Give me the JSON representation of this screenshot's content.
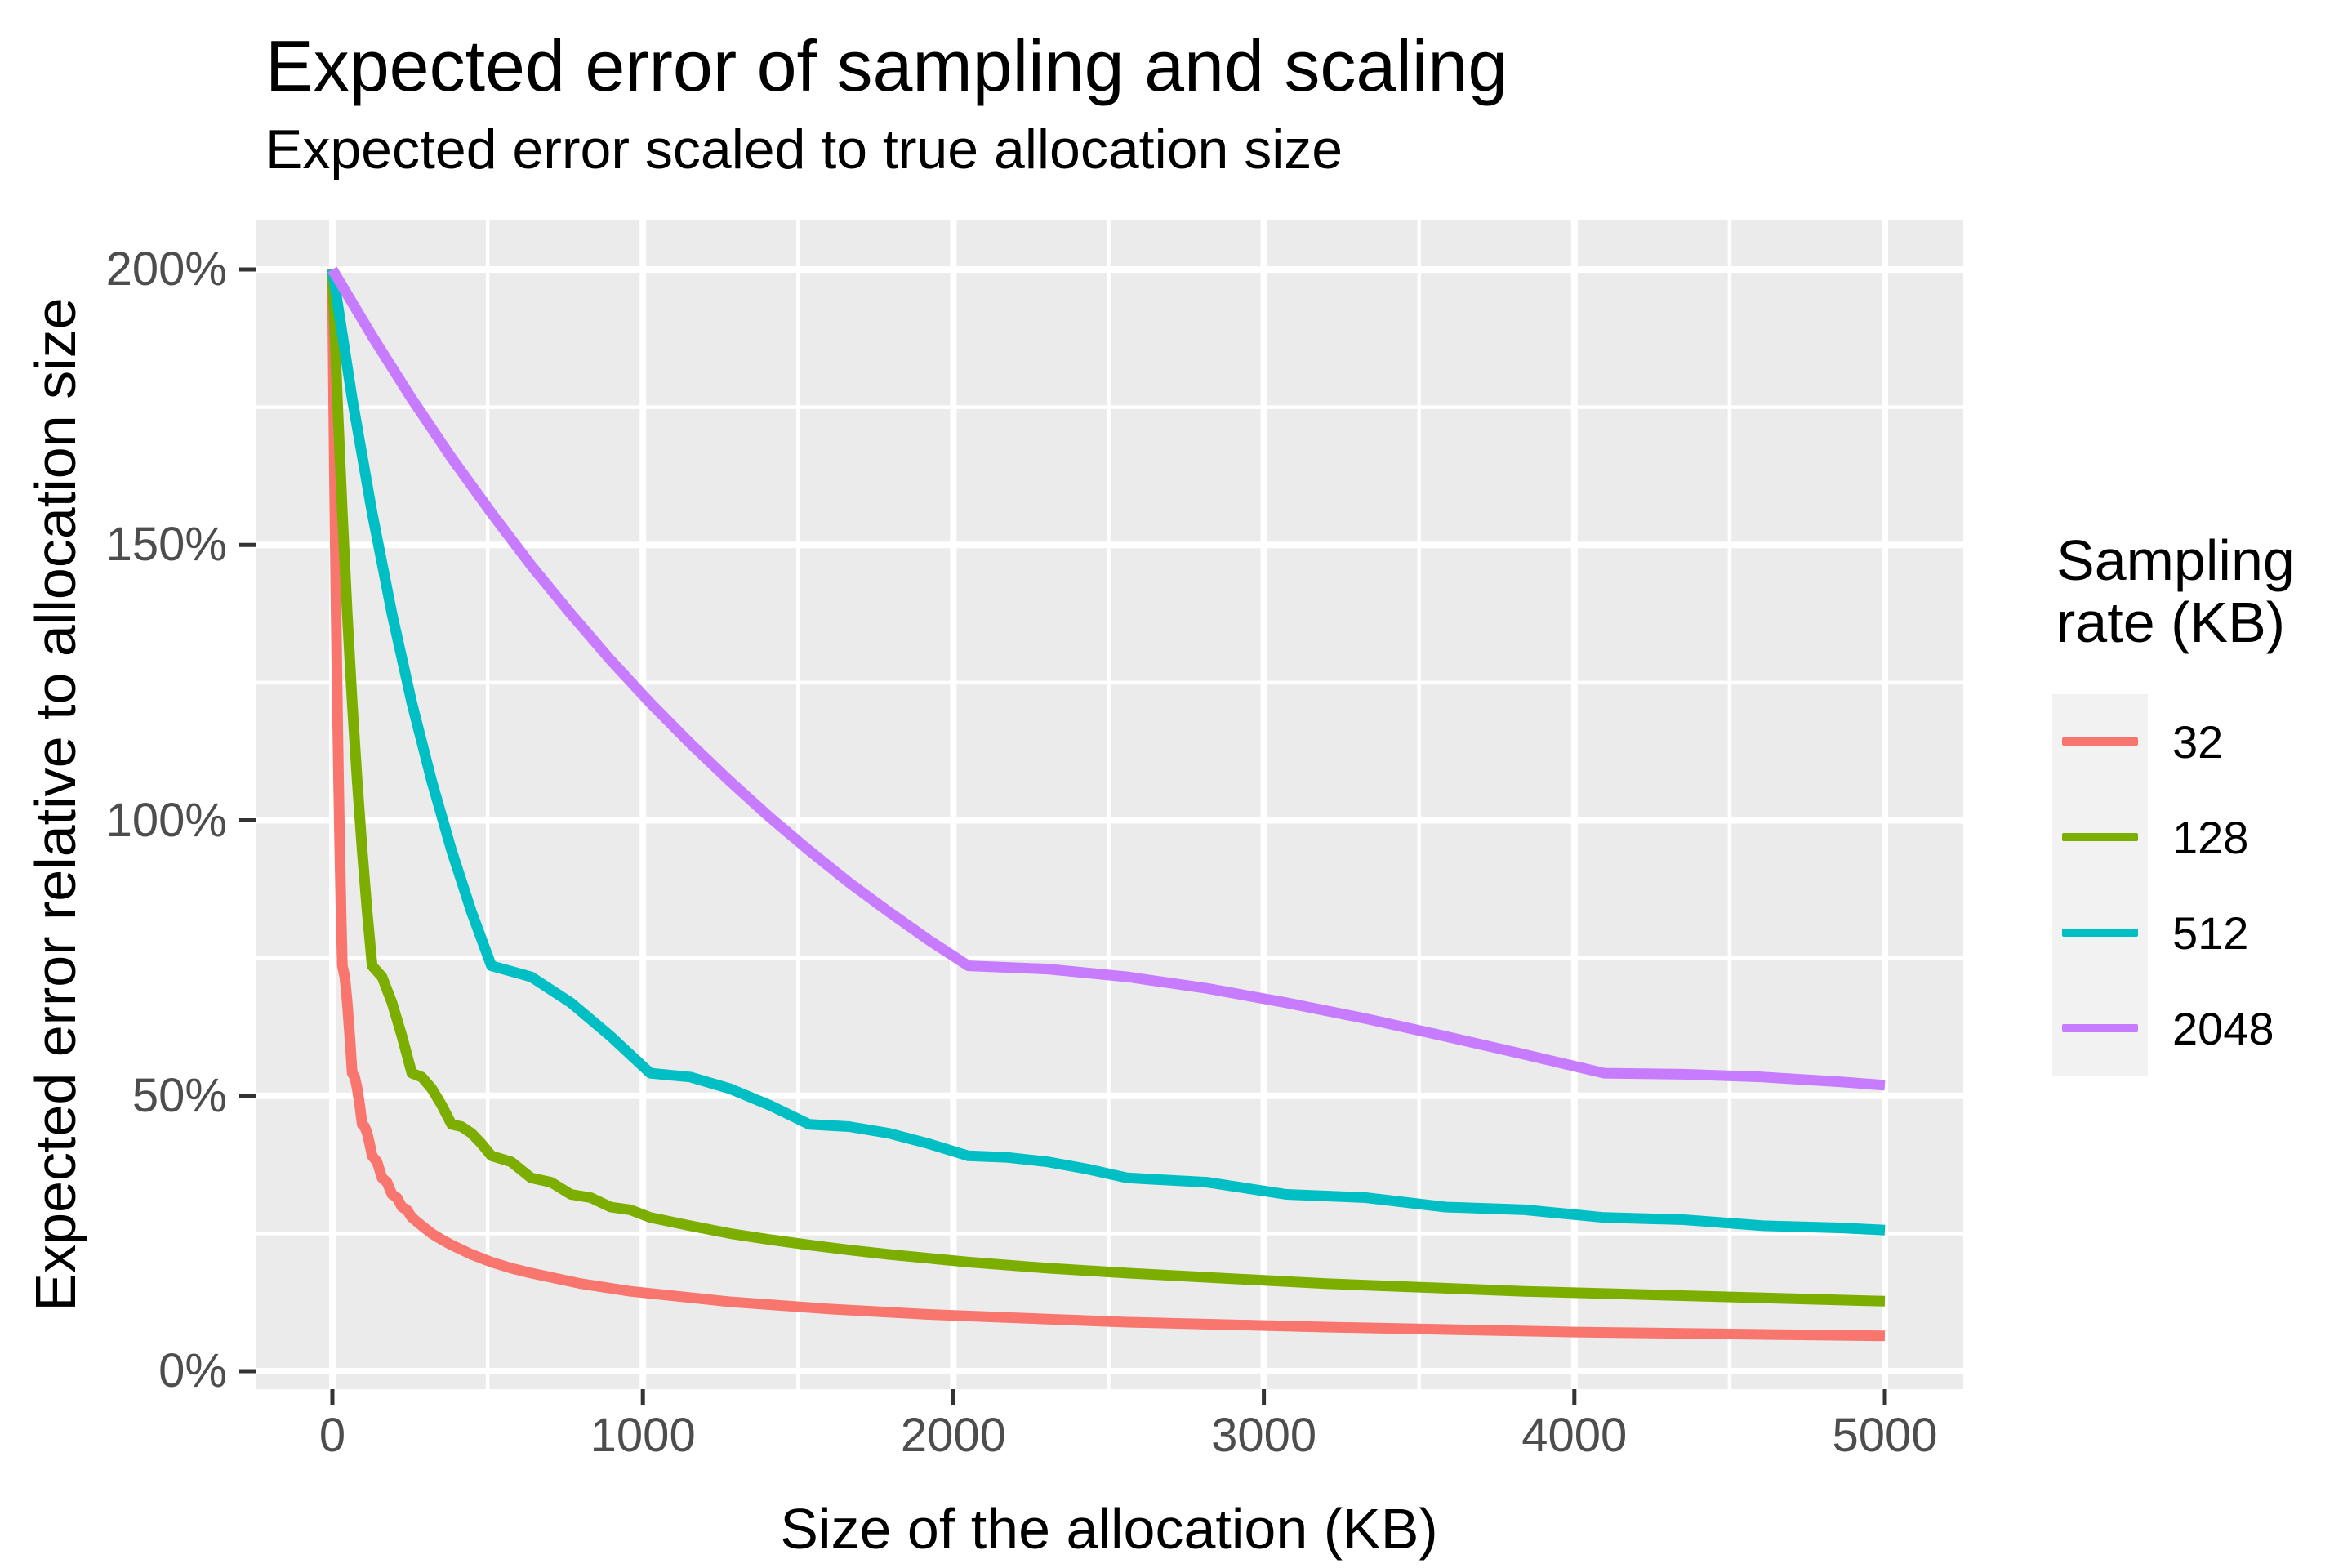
{
  "chart_data": {
    "type": "line",
    "title": "Expected error of sampling and scaling",
    "subtitle": "Expected error scaled to true allocation size",
    "xlabel": "Size of the allocation (KB)",
    "ylabel": "Expected error relative to allocation size",
    "legend_title": "Sampling rate (KB)",
    "legend_position": "right",
    "grid": true,
    "panel_bg": "#EBEBEB",
    "grid_color": "#FFFFFF",
    "tick_color": "#333333",
    "tick_label_color": "#4D4D4D",
    "xlim": [
      0,
      5000
    ],
    "ylim_pct": [
      0,
      200
    ],
    "x_ticks": [
      0,
      1000,
      2000,
      3000,
      4000,
      5000
    ],
    "x_minor_ticks": [
      500,
      1500,
      2500,
      3500,
      4500
    ],
    "y_ticks_pct": [
      0,
      50,
      100,
      150,
      200
    ],
    "y_minor_ticks_pct": [
      25,
      75,
      125,
      175
    ],
    "y_tick_labels": [
      "0%",
      "50%",
      "100%",
      "150%",
      "200%"
    ],
    "series": [
      {
        "name": "32",
        "color": "#F8766D",
        "x": [
          0,
          4,
          8,
          12,
          16,
          20,
          24,
          28,
          32,
          40,
          48,
          56,
          64,
          72,
          80,
          88,
          96,
          104,
          112,
          120,
          128,
          144,
          160,
          176,
          192,
          208,
          224,
          240,
          256,
          288,
          320,
          352,
          384,
          448,
          512,
          576,
          640,
          800,
          960,
          1280,
          1600,
          1920,
          2560,
          3200,
          4000,
          5000
        ],
        "y_pct": [
          200,
          176.5,
          155.8,
          137.5,
          121.3,
          107.1,
          94.5,
          83.4,
          73.6,
          71.6,
          66.9,
          60.8,
          54.1,
          53.4,
          51.3,
          48.3,
          44.8,
          44.4,
          43.2,
          41.3,
          39.1,
          38,
          35.1,
          34.3,
          32.1,
          31.5,
          29.8,
          29.3,
          27.9,
          26.4,
          25,
          23.9,
          22.9,
          21.2,
          19.8,
          18.7,
          17.8,
          15.9,
          14.5,
          12.6,
          11.3,
          10.3,
          8.9,
          8,
          7.1,
          6.4
        ]
      },
      {
        "name": "128",
        "color": "#7CAE00",
        "x": [
          0,
          16,
          32,
          48,
          64,
          80,
          96,
          112,
          128,
          160,
          192,
          224,
          256,
          288,
          320,
          352,
          384,
          416,
          448,
          480,
          512,
          576,
          640,
          704,
          768,
          832,
          896,
          960,
          1024,
          1152,
          1280,
          1408,
          1536,
          1664,
          1792,
          2048,
          2304,
          2560,
          3200,
          3840,
          4480,
          5000
        ],
        "y_pct": [
          200,
          176.5,
          155.8,
          137.5,
          121.3,
          107.1,
          94.5,
          83.4,
          73.6,
          71.6,
          66.9,
          60.8,
          54.1,
          53.4,
          51.3,
          48.3,
          44.8,
          44.4,
          43.2,
          41.3,
          39.1,
          38,
          35.1,
          34.3,
          32.1,
          31.5,
          29.8,
          29.3,
          27.9,
          26.4,
          25,
          23.9,
          22.9,
          22,
          21.2,
          19.8,
          18.7,
          17.8,
          15.9,
          14.5,
          13.5,
          12.7
        ]
      },
      {
        "name": "512",
        "color": "#00BFC4",
        "x": [
          0,
          64,
          128,
          192,
          256,
          320,
          384,
          448,
          512,
          640,
          768,
          896,
          1024,
          1152,
          1280,
          1408,
          1536,
          1664,
          1792,
          1920,
          2048,
          2176,
          2304,
          2432,
          2560,
          2816,
          3072,
          3328,
          3584,
          3840,
          4096,
          4352,
          4608,
          4864,
          5000
        ],
        "y_pct": [
          200,
          176.5,
          155.8,
          137.5,
          121.3,
          107.1,
          94.5,
          83.4,
          73.6,
          71.6,
          66.9,
          60.8,
          54.1,
          53.4,
          51.3,
          48.3,
          44.8,
          44.4,
          43.2,
          41.3,
          39.1,
          38.8,
          38,
          36.7,
          35.1,
          34.3,
          32.1,
          31.5,
          29.8,
          29.3,
          27.9,
          27.5,
          26.4,
          26,
          25.6
        ]
      },
      {
        "name": "2048",
        "color": "#C77CFF",
        "x": [
          0,
          128,
          256,
          384,
          512,
          640,
          768,
          896,
          1024,
          1152,
          1280,
          1408,
          1536,
          1664,
          1792,
          1920,
          2048,
          2304,
          2560,
          2816,
          3072,
          3328,
          3584,
          3840,
          4096,
          4352,
          4608,
          4864,
          5000
        ],
        "y_pct": [
          200,
          187.9,
          176.5,
          165.8,
          155.8,
          146.3,
          137.5,
          129.1,
          121.3,
          114,
          107.1,
          100.6,
          94.5,
          88.7,
          83.4,
          78.3,
          73.6,
          73,
          71.6,
          69.5,
          66.9,
          64,
          60.8,
          57.5,
          54.1,
          53.9,
          53.4,
          52.5,
          51.9
        ]
      }
    ]
  }
}
